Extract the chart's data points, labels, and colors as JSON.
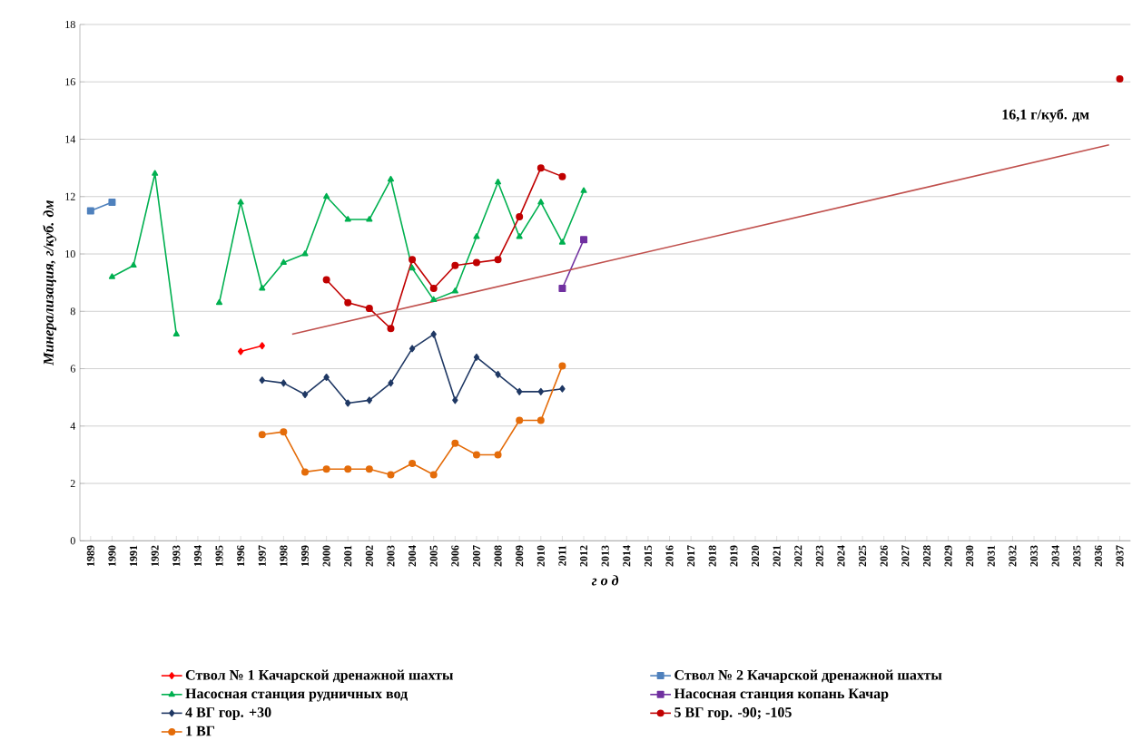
{
  "chart_data": {
    "type": "line",
    "xlabel": "г  о  д",
    "ylabel": "Минерализация, г/куб. дм",
    "xlim": [
      1988.5,
      2037.5
    ],
    "xticks": [
      1989,
      1990,
      1991,
      1992,
      1993,
      1994,
      1995,
      1996,
      1997,
      1998,
      1999,
      2000,
      2001,
      2002,
      2003,
      2004,
      2005,
      2006,
      2007,
      2008,
      2009,
      2010,
      2011,
      2012,
      2013,
      2014,
      2015,
      2016,
      2017,
      2018,
      2019,
      2020,
      2021,
      2022,
      2023,
      2024,
      2025,
      2026,
      2027,
      2028,
      2029,
      2030,
      2031,
      2032,
      2033,
      2034,
      2035,
      2036,
      2037
    ],
    "ylim": [
      0,
      18
    ],
    "yticks": [
      0,
      2,
      4,
      6,
      8,
      10,
      12,
      14,
      16,
      18
    ],
    "grid": "y",
    "legend": "bottom",
    "line_style": "solid",
    "series": [
      {
        "name": "Ствол № 1 Качарской дренажной шахты",
        "color": "#ff0000",
        "marker": "diamond",
        "x": [
          1996,
          1997
        ],
        "values": [
          6.6,
          6.8
        ]
      },
      {
        "name": "Ствол № 2 Качарской дренажной шахты",
        "color": "#4f81bd",
        "marker": "square",
        "x": [
          1989,
          1990
        ],
        "values": [
          11.5,
          11.8
        ]
      },
      {
        "name": "Насосная станция рудничных вод",
        "color": "#00b050",
        "marker": "triangle",
        "x": [
          1990,
          1991,
          1992,
          1993,
          1994,
          1995,
          1996,
          1997,
          1998,
          1999,
          2000,
          2001,
          2002,
          2003,
          2004,
          2005,
          2006,
          2007,
          2008,
          2009,
          2010,
          2011,
          2012
        ],
        "values": [
          9.2,
          9.6,
          12.8,
          7.2,
          null,
          8.3,
          11.8,
          8.8,
          9.7,
          10.0,
          12.0,
          11.2,
          11.2,
          12.6,
          9.5,
          8.4,
          8.7,
          10.6,
          12.5,
          10.6,
          11.8,
          10.4,
          12.2
        ]
      },
      {
        "name": "Насосная станция копань Качар",
        "color": "#7030a0",
        "marker": "square",
        "x": [
          2011,
          2012
        ],
        "values": [
          8.8,
          10.5
        ]
      },
      {
        "name": "4 ВГ гор. +30",
        "color": "#1f3864",
        "marker": "diamond",
        "x": [
          1997,
          1998,
          1999,
          2000,
          2001,
          2002,
          2003,
          2004,
          2005,
          2006,
          2007,
          2008,
          2009,
          2010,
          2011
        ],
        "values": [
          5.6,
          5.5,
          5.1,
          5.7,
          4.8,
          4.9,
          5.5,
          6.7,
          7.2,
          4.9,
          6.4,
          5.8,
          5.2,
          5.2,
          5.3
        ]
      },
      {
        "name": "5 ВГ гор. -90; -105",
        "color": "#c00000",
        "marker": "circle",
        "x": [
          2000,
          2001,
          2002,
          2003,
          2004,
          2005,
          2006,
          2007,
          2008,
          2009,
          2010,
          2011,
          2012,
          2037
        ],
        "values": [
          9.1,
          8.3,
          8.1,
          7.4,
          9.8,
          8.8,
          9.6,
          9.7,
          9.8,
          11.3,
          13.0,
          12.7,
          null,
          16.1
        ]
      },
      {
        "name": "1 ВГ",
        "color": "#e46c0a",
        "marker": "circle",
        "x": [
          1997,
          1998,
          1999,
          2000,
          2001,
          2002,
          2003,
          2004,
          2005,
          2006,
          2007,
          2008,
          2009,
          2010,
          2011
        ],
        "values": [
          3.7,
          3.8,
          2.4,
          2.5,
          2.5,
          2.5,
          2.3,
          2.7,
          2.3,
          3.4,
          3.0,
          3.0,
          4.2,
          4.2,
          6.1
        ]
      },
      {
        "type": "line",
        "color": "#c0504d",
        "marker": "none",
        "x": [
          1998.4,
          2036.5
        ],
        "values": [
          7.2,
          13.8
        ]
      }
    ],
    "annotations": [
      "16,1 г/куб. дм"
    ]
  }
}
